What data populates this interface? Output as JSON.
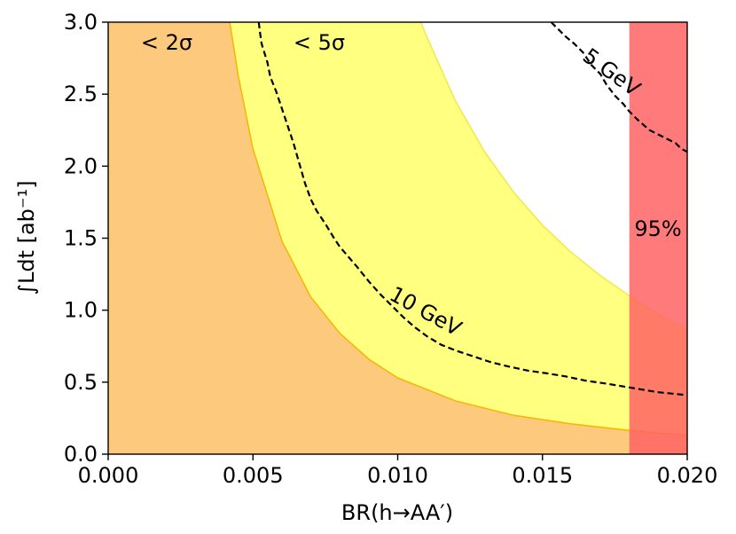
{
  "chart_data": {
    "type": "area",
    "xlabel": "BR(h→AA′)",
    "ylabel": "∫Ldt [ab⁻¹]",
    "xlim": [
      0.0,
      0.02
    ],
    "ylim": [
      0.0,
      3.0
    ],
    "x_ticks": [
      "0.000",
      "0.005",
      "0.010",
      "0.015",
      "0.020"
    ],
    "y_ticks": [
      "0.0",
      "0.5",
      "1.0",
      "1.5",
      "2.0",
      "2.5",
      "3.0"
    ],
    "regions": [
      {
        "label": "< 2σ",
        "color": "#fdc97c",
        "boundary": {
          "x": [
            0.0042,
            0.0045,
            0.005,
            0.006,
            0.007,
            0.008,
            0.009,
            0.01,
            0.012,
            0.014,
            0.016,
            0.018,
            0.02
          ],
          "y": [
            3.0,
            2.62,
            2.12,
            1.48,
            1.09,
            0.84,
            0.66,
            0.53,
            0.37,
            0.27,
            0.21,
            0.165,
            0.13
          ]
        }
      },
      {
        "label": "< 5σ",
        "color": "#ffff80",
        "boundary": {
          "x": [
            0.0108,
            0.011,
            0.012,
            0.013,
            0.014,
            0.015,
            0.016,
            0.017,
            0.018,
            0.019,
            0.02
          ],
          "y": [
            3.0,
            2.9,
            2.45,
            2.1,
            1.82,
            1.59,
            1.4,
            1.24,
            1.1,
            0.97,
            0.86
          ]
        }
      }
    ],
    "exclusion": {
      "label": "95%",
      "x_from": 0.018,
      "x_to": 0.02,
      "color": "#ff6464"
    },
    "contours": [
      {
        "label": "5 GeV",
        "style": "dashed",
        "x": [
          0.0153,
          0.0158,
          0.0161,
          0.0164,
          0.0167,
          0.017,
          0.0172,
          0.0175,
          0.0178,
          0.018,
          0.0183,
          0.0187,
          0.019,
          0.0193,
          0.0196,
          0.0198,
          0.02
        ],
        "y": [
          3.0,
          2.9,
          2.85,
          2.79,
          2.7,
          2.64,
          2.57,
          2.49,
          2.43,
          2.38,
          2.32,
          2.25,
          2.22,
          2.19,
          2.16,
          2.12,
          2.1
        ]
      },
      {
        "label": "10 GeV",
        "style": "dashed",
        "x": [
          0.0052,
          0.00525,
          0.0053,
          0.0055,
          0.0056,
          0.0058,
          0.006,
          0.0062,
          0.0064,
          0.0066,
          0.0068,
          0.007,
          0.0072,
          0.0075,
          0.0078,
          0.008,
          0.0083,
          0.0086,
          0.009,
          0.0094,
          0.0098,
          0.0102,
          0.0106,
          0.011,
          0.0115,
          0.012,
          0.0126,
          0.0132,
          0.0138,
          0.0145,
          0.0152,
          0.0158,
          0.0165,
          0.0172,
          0.0178,
          0.0184,
          0.019,
          0.0195,
          0.02
        ],
        "y": [
          3.0,
          2.92,
          2.85,
          2.72,
          2.62,
          2.52,
          2.4,
          2.28,
          2.16,
          2.02,
          1.88,
          1.77,
          1.69,
          1.6,
          1.5,
          1.44,
          1.37,
          1.3,
          1.2,
          1.11,
          1.03,
          0.95,
          0.88,
          0.82,
          0.76,
          0.72,
          0.68,
          0.64,
          0.61,
          0.58,
          0.56,
          0.54,
          0.51,
          0.49,
          0.47,
          0.45,
          0.43,
          0.42,
          0.41
        ]
      }
    ],
    "grid": false,
    "legend": "none"
  }
}
